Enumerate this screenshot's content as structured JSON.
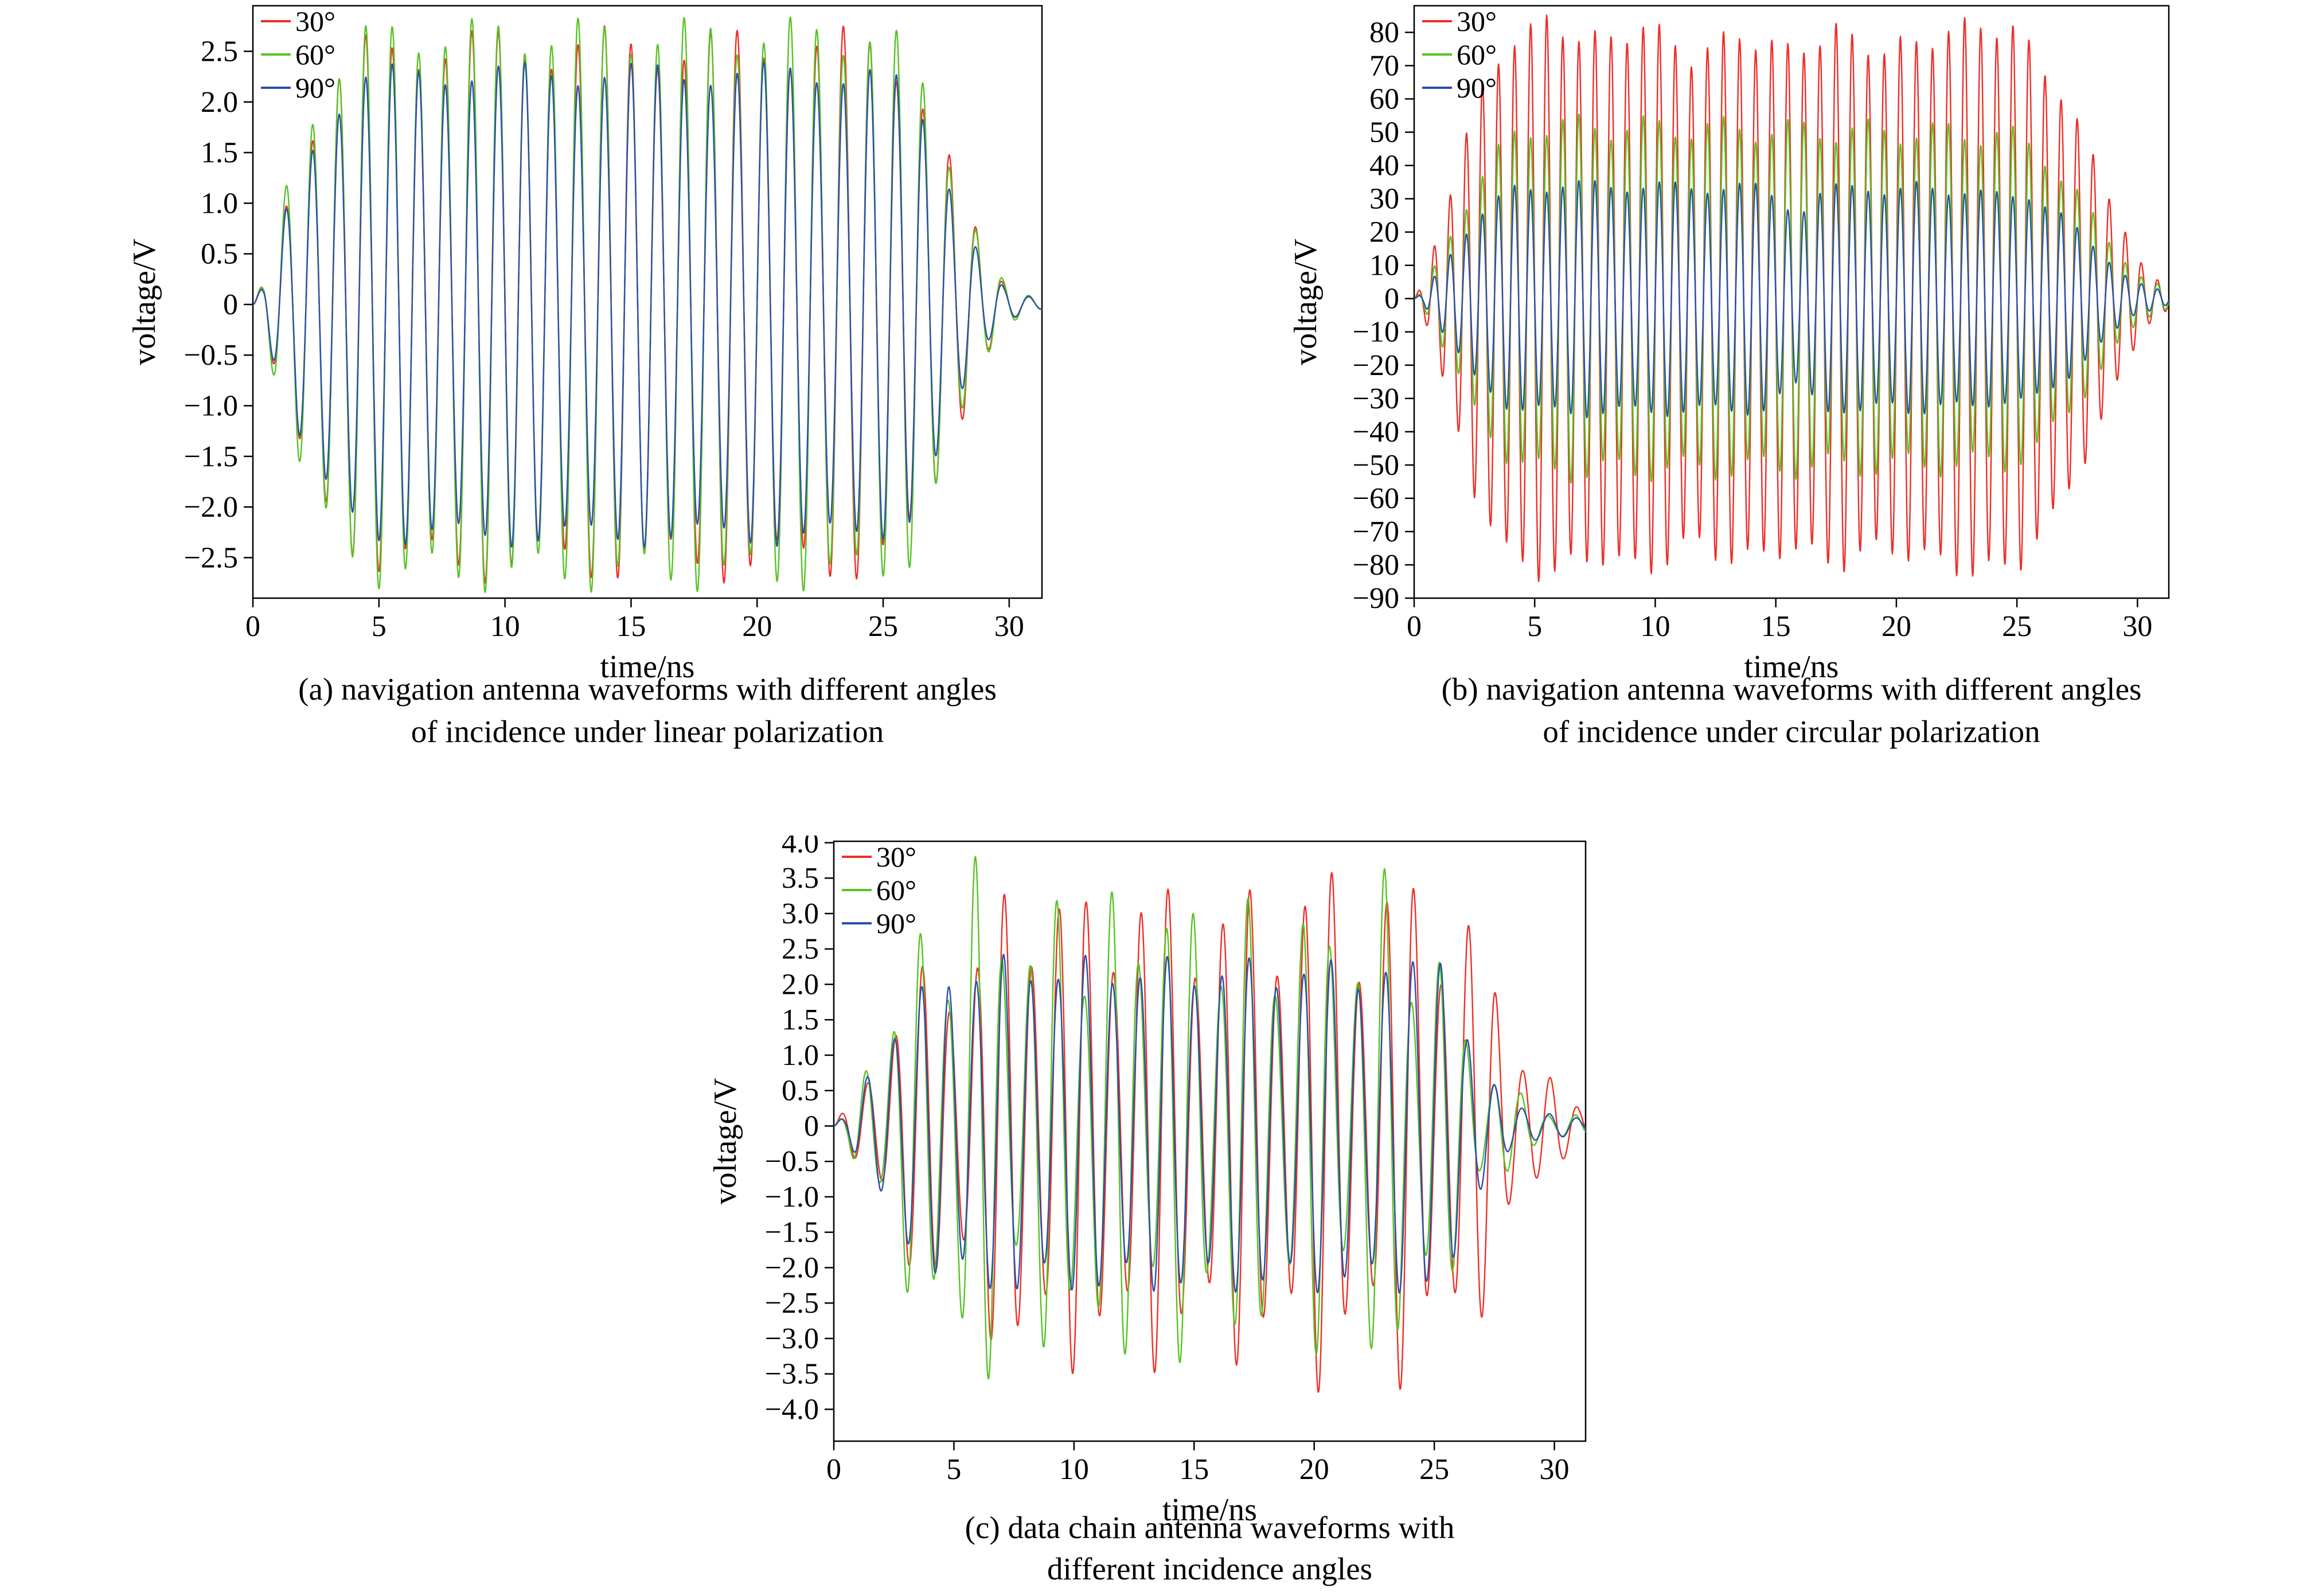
{
  "figure": {
    "background": "#ffffff",
    "text_color": "#000000"
  },
  "chart_data": [
    {
      "id": "a",
      "type": "line",
      "caption_line1": "(a) navigation antenna waveforms with different angles",
      "caption_line2": "of incidence under linear polarization",
      "xlabel": "time/ns",
      "ylabel": "voltage/V",
      "xlim": [
        0,
        31.3
      ],
      "ylim": [
        -2.9,
        2.95
      ],
      "xticks": [
        0,
        5,
        10,
        15,
        20,
        25,
        30
      ],
      "xtick_labels": [
        "0",
        "5",
        "10",
        "15",
        "20",
        "25",
        "30"
      ],
      "yticks": [
        2.5,
        2.0,
        1.5,
        1.0,
        0.5,
        0,
        -0.5,
        -1.0,
        -1.5,
        -2.0,
        -2.5
      ],
      "ytick_labels": [
        "2.5",
        "2.0",
        "1.5",
        "1.0",
        "0.5",
        "0",
        "−0.5",
        "−1.0",
        "−1.5",
        "−2.0",
        "−2.5"
      ],
      "grid": false,
      "legend_position": "top-left",
      "series": [
        {
          "name": "30°",
          "color": "#ee2f26",
          "peak": 2.75,
          "carrier_freq": 0.95,
          "carrier_phase": 0.0,
          "mod_freq": 0.21,
          "mod_depth": 0.08,
          "mod_phase": 2.0,
          "envelope": [
            [
              0,
              0
            ],
            [
              0.4,
              0.08
            ],
            [
              1,
              0.3
            ],
            [
              2,
              0.62
            ],
            [
              3,
              0.82
            ],
            [
              4.5,
              0.97
            ],
            [
              6,
              1
            ],
            [
              24.5,
              1
            ],
            [
              26,
              0.92
            ],
            [
              27,
              0.72
            ],
            [
              28,
              0.45
            ],
            [
              29,
              0.2
            ],
            [
              29.8,
              0.08
            ],
            [
              30.5,
              0.04
            ],
            [
              31.3,
              0.02
            ]
          ]
        },
        {
          "name": "60°",
          "color": "#57c226",
          "peak": 2.85,
          "carrier_freq": 0.95,
          "carrier_phase": 0.0,
          "mod_freq": 0.24,
          "mod_depth": 0.07,
          "mod_phase": 0.5,
          "envelope": [
            [
              0,
              0
            ],
            [
              0.4,
              0.08
            ],
            [
              1,
              0.32
            ],
            [
              2,
              0.64
            ],
            [
              3,
              0.84
            ],
            [
              4.5,
              0.98
            ],
            [
              6,
              1
            ],
            [
              24.5,
              1
            ],
            [
              26,
              0.93
            ],
            [
              27,
              0.72
            ],
            [
              28,
              0.45
            ],
            [
              29,
              0.2
            ],
            [
              29.8,
              0.08
            ],
            [
              30.5,
              0.04
            ],
            [
              31.3,
              0.02
            ]
          ]
        },
        {
          "name": "90°",
          "color": "#2b4fa8",
          "peak": 2.4,
          "carrier_freq": 0.95,
          "carrier_phase": 0.0,
          "mod_freq": 0.2,
          "mod_depth": 0.05,
          "mod_phase": 1.0,
          "envelope": [
            [
              0,
              0
            ],
            [
              0.4,
              0.08
            ],
            [
              1,
              0.3
            ],
            [
              2,
              0.62
            ],
            [
              3,
              0.82
            ],
            [
              4.5,
              0.97
            ],
            [
              6,
              1
            ],
            [
              24.5,
              1
            ],
            [
              26,
              0.92
            ],
            [
              27,
              0.7
            ],
            [
              28,
              0.42
            ],
            [
              29,
              0.18
            ],
            [
              29.8,
              0.07
            ],
            [
              30.5,
              0.04
            ],
            [
              31.3,
              0.02
            ]
          ]
        }
      ]
    },
    {
      "id": "b",
      "type": "line",
      "caption_line1": "(b) navigation antenna waveforms with different angles",
      "caption_line2": "of incidence under circular polarization",
      "xlabel": "time/ns",
      "ylabel": "voltage/V",
      "xlim": [
        0,
        31.3
      ],
      "ylim": [
        -90,
        88
      ],
      "xticks": [
        0,
        5,
        10,
        15,
        20,
        25,
        30
      ],
      "xtick_labels": [
        "0",
        "5",
        "10",
        "15",
        "20",
        "25",
        "30"
      ],
      "yticks": [
        80,
        70,
        60,
        50,
        40,
        30,
        20,
        10,
        0,
        -10,
        -20,
        -30,
        -40,
        -50,
        -60,
        -70,
        -80,
        -90
      ],
      "ytick_labels": [
        "80",
        "70",
        "60",
        "50",
        "40",
        "30",
        "20",
        "10",
        "0",
        "−10",
        "−20",
        "−30",
        "−40",
        "−50",
        "−60",
        "−70",
        "−80",
        "−90"
      ],
      "grid": false,
      "legend_position": "top-left",
      "series": [
        {
          "name": "30°",
          "color": "#ee2f26",
          "peak": 86,
          "carrier_freq": 1.5,
          "carrier_phase": 0.0,
          "mod_freq": 0.4,
          "mod_depth": 0.04,
          "mod_phase": 1.0,
          "envelope": [
            [
              0,
              0
            ],
            [
              0.4,
              0.06
            ],
            [
              1.2,
              0.3
            ],
            [
              2.5,
              0.7
            ],
            [
              4,
              0.95
            ],
            [
              5.5,
              1
            ],
            [
              8,
              0.93
            ],
            [
              9.5,
              1.0
            ],
            [
              11.5,
              0.88
            ],
            [
              13.5,
              0.96
            ],
            [
              15.5,
              0.9
            ],
            [
              17.5,
              0.97
            ],
            [
              19.5,
              0.9
            ],
            [
              21.5,
              0.95
            ],
            [
              23.5,
              1.0
            ],
            [
              25,
              0.97
            ],
            [
              26.5,
              0.8
            ],
            [
              28,
              0.55
            ],
            [
              29.3,
              0.28
            ],
            [
              30.3,
              0.1
            ],
            [
              31.3,
              0.04
            ]
          ]
        },
        {
          "name": "60°",
          "color": "#57c226",
          "peak": 56,
          "carrier_freq": 1.5,
          "carrier_phase": 0.0,
          "mod_freq": 0.33,
          "mod_depth": 0.07,
          "mod_phase": 0.3,
          "envelope": [
            [
              0,
              0
            ],
            [
              0.4,
              0.05
            ],
            [
              1.2,
              0.28
            ],
            [
              2.5,
              0.65
            ],
            [
              4,
              0.92
            ],
            [
              5,
              1
            ],
            [
              24.5,
              0.95
            ],
            [
              26,
              0.85
            ],
            [
              27.5,
              0.6
            ],
            [
              29,
              0.3
            ],
            [
              30.2,
              0.12
            ],
            [
              31.3,
              0.05
            ]
          ]
        },
        {
          "name": "90°",
          "color": "#2b4fa8",
          "peak": 36,
          "carrier_freq": 1.5,
          "carrier_phase": 0.0,
          "mod_freq": 0.3,
          "mod_depth": 0.05,
          "mod_phase": 0.6,
          "envelope": [
            [
              0,
              0
            ],
            [
              0.4,
              0.05
            ],
            [
              1.2,
              0.3
            ],
            [
              2.5,
              0.7
            ],
            [
              4,
              0.95
            ],
            [
              6,
              1
            ],
            [
              14.5,
              0.97
            ],
            [
              16,
              0.75
            ],
            [
              17.2,
              0.95
            ],
            [
              18.5,
              1.03
            ],
            [
              19.8,
              0.9
            ],
            [
              21,
              1.0
            ],
            [
              22.5,
              0.95
            ],
            [
              24,
              0.9
            ],
            [
              25.5,
              0.92
            ],
            [
              27,
              0.7
            ],
            [
              28.5,
              0.4
            ],
            [
              29.8,
              0.15
            ],
            [
              31.3,
              0.05
            ]
          ]
        }
      ]
    },
    {
      "id": "c",
      "type": "line",
      "caption_line1": "(c) data chain antenna waveforms with",
      "caption_line2": "different incidence angles",
      "xlabel": "time/ns",
      "ylabel": "voltage/V",
      "xlim": [
        0,
        31.3
      ],
      "ylim": [
        -4.45,
        4.02
      ],
      "xticks": [
        0,
        5,
        10,
        15,
        20,
        25,
        30
      ],
      "xtick_labels": [
        "0",
        "5",
        "10",
        "15",
        "20",
        "25",
        "30"
      ],
      "yticks": [
        4.0,
        3.5,
        3.0,
        2.5,
        2.0,
        1.5,
        1.0,
        0.5,
        0,
        -0.5,
        -1.0,
        -1.5,
        -2.0,
        -2.5,
        -3.0,
        -3.5,
        -4.0
      ],
      "ytick_labels": [
        "4.0",
        "3.5",
        "3.0",
        "2.5",
        "2.0",
        "1.5",
        "1.0",
        "0.5",
        "0",
        "−0.5",
        "−1.0",
        "−1.5",
        "−2.0",
        "−2.5",
        "−3.0",
        "−3.5",
        "−4.0"
      ],
      "grid": false,
      "legend_position": "top-left",
      "series": [
        {
          "name": "30°",
          "color": "#ee2f26",
          "peak": 4.1,
          "carrier_freq": 0.88,
          "carrier_phase": 0.0,
          "mod_freq": 0.3,
          "mod_depth": 0.22,
          "mod_phase": 1.2,
          "envelope": [
            [
              0,
              0
            ],
            [
              0.6,
              0.08
            ],
            [
              1.5,
              0.25
            ],
            [
              3,
              0.5
            ],
            [
              4.5,
              0.62
            ],
            [
              6,
              0.72
            ],
            [
              7.5,
              0.85
            ],
            [
              9,
              1.0
            ],
            [
              10.5,
              0.8
            ],
            [
              12,
              0.95
            ],
            [
              13.5,
              0.85
            ],
            [
              15,
              0.9
            ],
            [
              16.5,
              0.8
            ],
            [
              18,
              0.95
            ],
            [
              19.5,
              0.85
            ],
            [
              21,
              1.0
            ],
            [
              22.5,
              0.8
            ],
            [
              24,
              0.95
            ],
            [
              25.5,
              0.85
            ],
            [
              26.8,
              0.7
            ],
            [
              28,
              0.45
            ],
            [
              29.2,
              0.25
            ],
            [
              30.3,
              0.12
            ],
            [
              31.3,
              0.06
            ]
          ]
        },
        {
          "name": "60°",
          "color": "#57c226",
          "peak": 4.15,
          "carrier_freq": 0.88,
          "carrier_phase": 0.45,
          "mod_freq": 0.36,
          "mod_depth": 0.25,
          "mod_phase": 0.2,
          "envelope": [
            [
              0,
              0
            ],
            [
              0.6,
              0.06
            ],
            [
              1.5,
              0.3
            ],
            [
              3,
              0.6
            ],
            [
              4.2,
              0.75
            ],
            [
              5.5,
              1.0
            ],
            [
              7,
              0.85
            ],
            [
              8.5,
              0.75
            ],
            [
              10,
              0.9
            ],
            [
              11.5,
              0.8
            ],
            [
              13,
              0.95
            ],
            [
              14.5,
              0.8
            ],
            [
              16,
              0.9
            ],
            [
              17.5,
              0.75
            ],
            [
              19,
              0.85
            ],
            [
              20.5,
              0.75
            ],
            [
              22,
              0.85
            ],
            [
              23.5,
              0.9
            ],
            [
              24.8,
              0.7
            ],
            [
              26,
              0.45
            ],
            [
              27.2,
              0.25
            ],
            [
              28.5,
              0.12
            ],
            [
              30,
              0.06
            ],
            [
              31.3,
              0.03
            ]
          ]
        },
        {
          "name": "90°",
          "color": "#2b4fa8",
          "peak": 2.5,
          "carrier_freq": 0.88,
          "carrier_phase": 0.2,
          "mod_freq": 0.3,
          "mod_depth": 0.1,
          "mod_phase": 0.8,
          "envelope": [
            [
              0,
              0
            ],
            [
              0.6,
              0.08
            ],
            [
              1.5,
              0.35
            ],
            [
              3,
              0.7
            ],
            [
              4.5,
              0.9
            ],
            [
              6,
              0.97
            ],
            [
              23.5,
              0.95
            ],
            [
              24.5,
              0.95
            ],
            [
              25.4,
              1.18
            ],
            [
              26.3,
              0.55
            ],
            [
              27.2,
              0.28
            ],
            [
              28.2,
              0.15
            ],
            [
              29.5,
              0.08
            ],
            [
              31.3,
              0.04
            ]
          ]
        }
      ]
    }
  ]
}
